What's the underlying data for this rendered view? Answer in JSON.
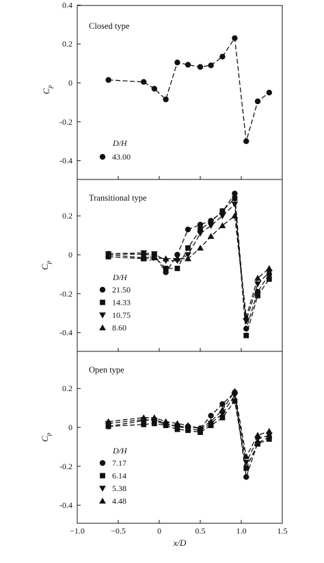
{
  "chart_data": [
    {
      "type": "line",
      "title": "Closed type",
      "xlabel": "",
      "ylabel": "C_p",
      "xlim": [
        -1.0,
        1.5
      ],
      "ylim": [
        -0.5,
        0.4
      ],
      "yticks": [
        0.4,
        0.2,
        0,
        -0.2,
        -0.4
      ],
      "ytick_labels": [
        "0.4",
        "0.2",
        "0",
        "-0.2",
        "-0.4"
      ],
      "grid": false,
      "legend_title": "D/H",
      "legend_position": "bottom-left",
      "series": [
        {
          "name": "43.00",
          "marker": "circle",
          "x": [
            -0.62,
            -0.19,
            -0.06,
            0.08,
            0.22,
            0.35,
            0.5,
            0.63,
            0.77,
            0.92,
            1.06,
            1.2,
            1.34
          ],
          "values": [
            0.015,
            0.005,
            -0.03,
            -0.085,
            0.105,
            0.093,
            0.082,
            0.09,
            0.135,
            0.23,
            -0.3,
            -0.095,
            -0.05
          ]
        }
      ]
    },
    {
      "type": "line",
      "title": "Transitional type",
      "xlabel": "",
      "ylabel": "C_p",
      "xlim": [
        -1.0,
        1.5
      ],
      "ylim": [
        -0.5,
        0.35
      ],
      "yticks": [
        0.2,
        0,
        -0.2,
        -0.4
      ],
      "ytick_labels": [
        "0.2",
        "0",
        "-0.2",
        "-0.4"
      ],
      "grid": false,
      "legend_title": "D/H",
      "legend_position": "bottom-left",
      "annotations": [
        "D/H"
      ],
      "series": [
        {
          "name": "21.50",
          "marker": "circle",
          "x": [
            -0.62,
            -0.19,
            -0.06,
            0.08,
            0.22,
            0.35,
            0.5,
            0.63,
            0.77,
            0.92,
            1.06,
            1.2,
            1.34
          ],
          "values": [
            0.005,
            0.002,
            0.0,
            -0.09,
            0.0,
            0.13,
            0.155,
            0.175,
            0.22,
            0.315,
            -0.38,
            -0.19,
            -0.1
          ]
        },
        {
          "name": "14.33",
          "marker": "square",
          "x": [
            -0.62,
            -0.19,
            -0.06,
            0.08,
            0.22,
            0.35,
            0.5,
            0.63,
            0.77,
            0.92,
            1.06,
            1.2,
            1.34
          ],
          "values": [
            -0.01,
            -0.02,
            -0.01,
            -0.07,
            -0.07,
            0.035,
            0.13,
            0.17,
            0.225,
            0.29,
            -0.415,
            -0.21,
            -0.125
          ]
        },
        {
          "name": "10.75",
          "marker": "triangle-down",
          "x": [
            -0.62,
            -0.19,
            -0.06,
            0.08,
            0.22,
            0.35,
            0.5,
            0.63,
            0.77,
            0.92,
            1.06,
            1.2,
            1.34
          ],
          "values": [
            0.005,
            0.01,
            0.005,
            -0.03,
            -0.03,
            0.0,
            0.11,
            0.15,
            0.2,
            0.26,
            -0.34,
            -0.15,
            -0.09
          ]
        },
        {
          "name": "8.60",
          "marker": "triangle-up",
          "x": [
            -0.62,
            -0.19,
            -0.06,
            0.08,
            0.22,
            0.35,
            0.5,
            0.63,
            0.77,
            0.92,
            1.06,
            1.2,
            1.34
          ],
          "values": [
            0.0,
            -0.015,
            -0.015,
            -0.02,
            -0.02,
            -0.02,
            0.035,
            0.095,
            0.15,
            0.2,
            -0.32,
            -0.12,
            -0.07
          ]
        }
      ]
    },
    {
      "type": "line",
      "title": "Open type",
      "xlabel": "x/D",
      "ylabel": "C_p",
      "xlim": [
        -1.0,
        1.5
      ],
      "ylim": [
        -0.5,
        0.35
      ],
      "yticks": [
        0.2,
        0,
        -0.2,
        -0.4
      ],
      "ytick_labels": [
        "0.2",
        "0",
        "-0.2",
        "-0.4"
      ],
      "xticks": [
        -1.0,
        -0.5,
        0,
        0.5,
        1.0,
        1.5
      ],
      "xtick_labels": [
        "−1.0",
        "−0.5",
        "0",
        "0.5",
        "1.0",
        "1.5"
      ],
      "grid": false,
      "legend_title": "D/H",
      "legend_position": "bottom-left",
      "series": [
        {
          "name": "7.17",
          "marker": "circle",
          "x": [
            -0.62,
            -0.19,
            -0.06,
            0.08,
            0.22,
            0.35,
            0.5,
            0.63,
            0.77,
            0.92,
            1.06,
            1.2,
            1.34
          ],
          "values": [
            0.005,
            0.035,
            0.04,
            0.02,
            0.005,
            0.005,
            -0.005,
            0.06,
            0.12,
            0.18,
            -0.255,
            -0.08,
            -0.05
          ]
        },
        {
          "name": "6.14",
          "marker": "square",
          "x": [
            -0.62,
            -0.19,
            -0.06,
            0.08,
            0.22,
            0.35,
            0.5,
            0.63,
            0.77,
            0.92,
            1.06,
            1.2,
            1.34
          ],
          "values": [
            0.005,
            0.015,
            0.02,
            0.01,
            -0.01,
            -0.015,
            -0.025,
            0.01,
            0.05,
            0.135,
            -0.21,
            -0.085,
            -0.06
          ]
        },
        {
          "name": "5.38",
          "marker": "triangle-down",
          "x": [
            -0.62,
            -0.19,
            -0.06,
            0.08,
            0.22,
            0.35,
            0.5,
            0.63,
            0.77,
            0.92,
            1.06,
            1.2,
            1.34
          ],
          "values": [
            0.02,
            0.04,
            0.035,
            0.015,
            0.005,
            -0.005,
            -0.015,
            0.02,
            0.07,
            0.165,
            -0.18,
            -0.06,
            -0.04
          ]
        },
        {
          "name": "4.48",
          "marker": "triangle-up",
          "x": [
            -0.62,
            -0.19,
            -0.06,
            0.08,
            0.22,
            0.35,
            0.5,
            0.63,
            0.77,
            0.92,
            1.06,
            1.2,
            1.34
          ],
          "values": [
            0.03,
            0.05,
            0.05,
            0.03,
            0.02,
            0.01,
            -0.005,
            0.03,
            0.09,
            0.185,
            -0.15,
            -0.04,
            -0.02
          ]
        }
      ]
    }
  ]
}
